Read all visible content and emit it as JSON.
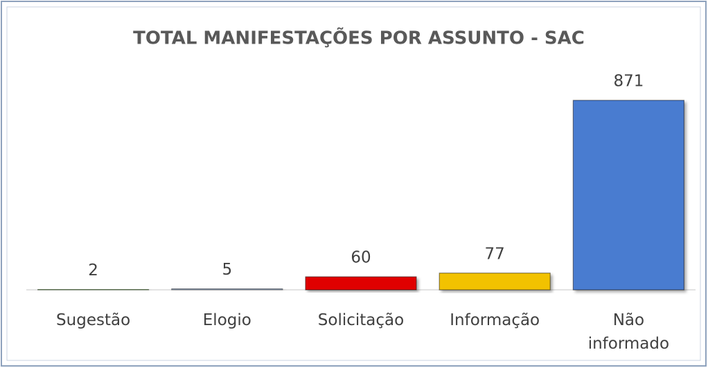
{
  "chart_data": {
    "type": "bar",
    "title": "TOTAL MANIFESTAÇÕES POR ASSUNTO - SAC",
    "categories": [
      "Sugestão",
      "Elogio",
      "Solicitação",
      "Informação",
      "Não informado"
    ],
    "values": [
      2,
      5,
      60,
      77,
      871
    ],
    "colors": [
      "#70ad47",
      "#a5b8d0",
      "#e00000",
      "#f2c200",
      "#4a7bd0"
    ]
  }
}
